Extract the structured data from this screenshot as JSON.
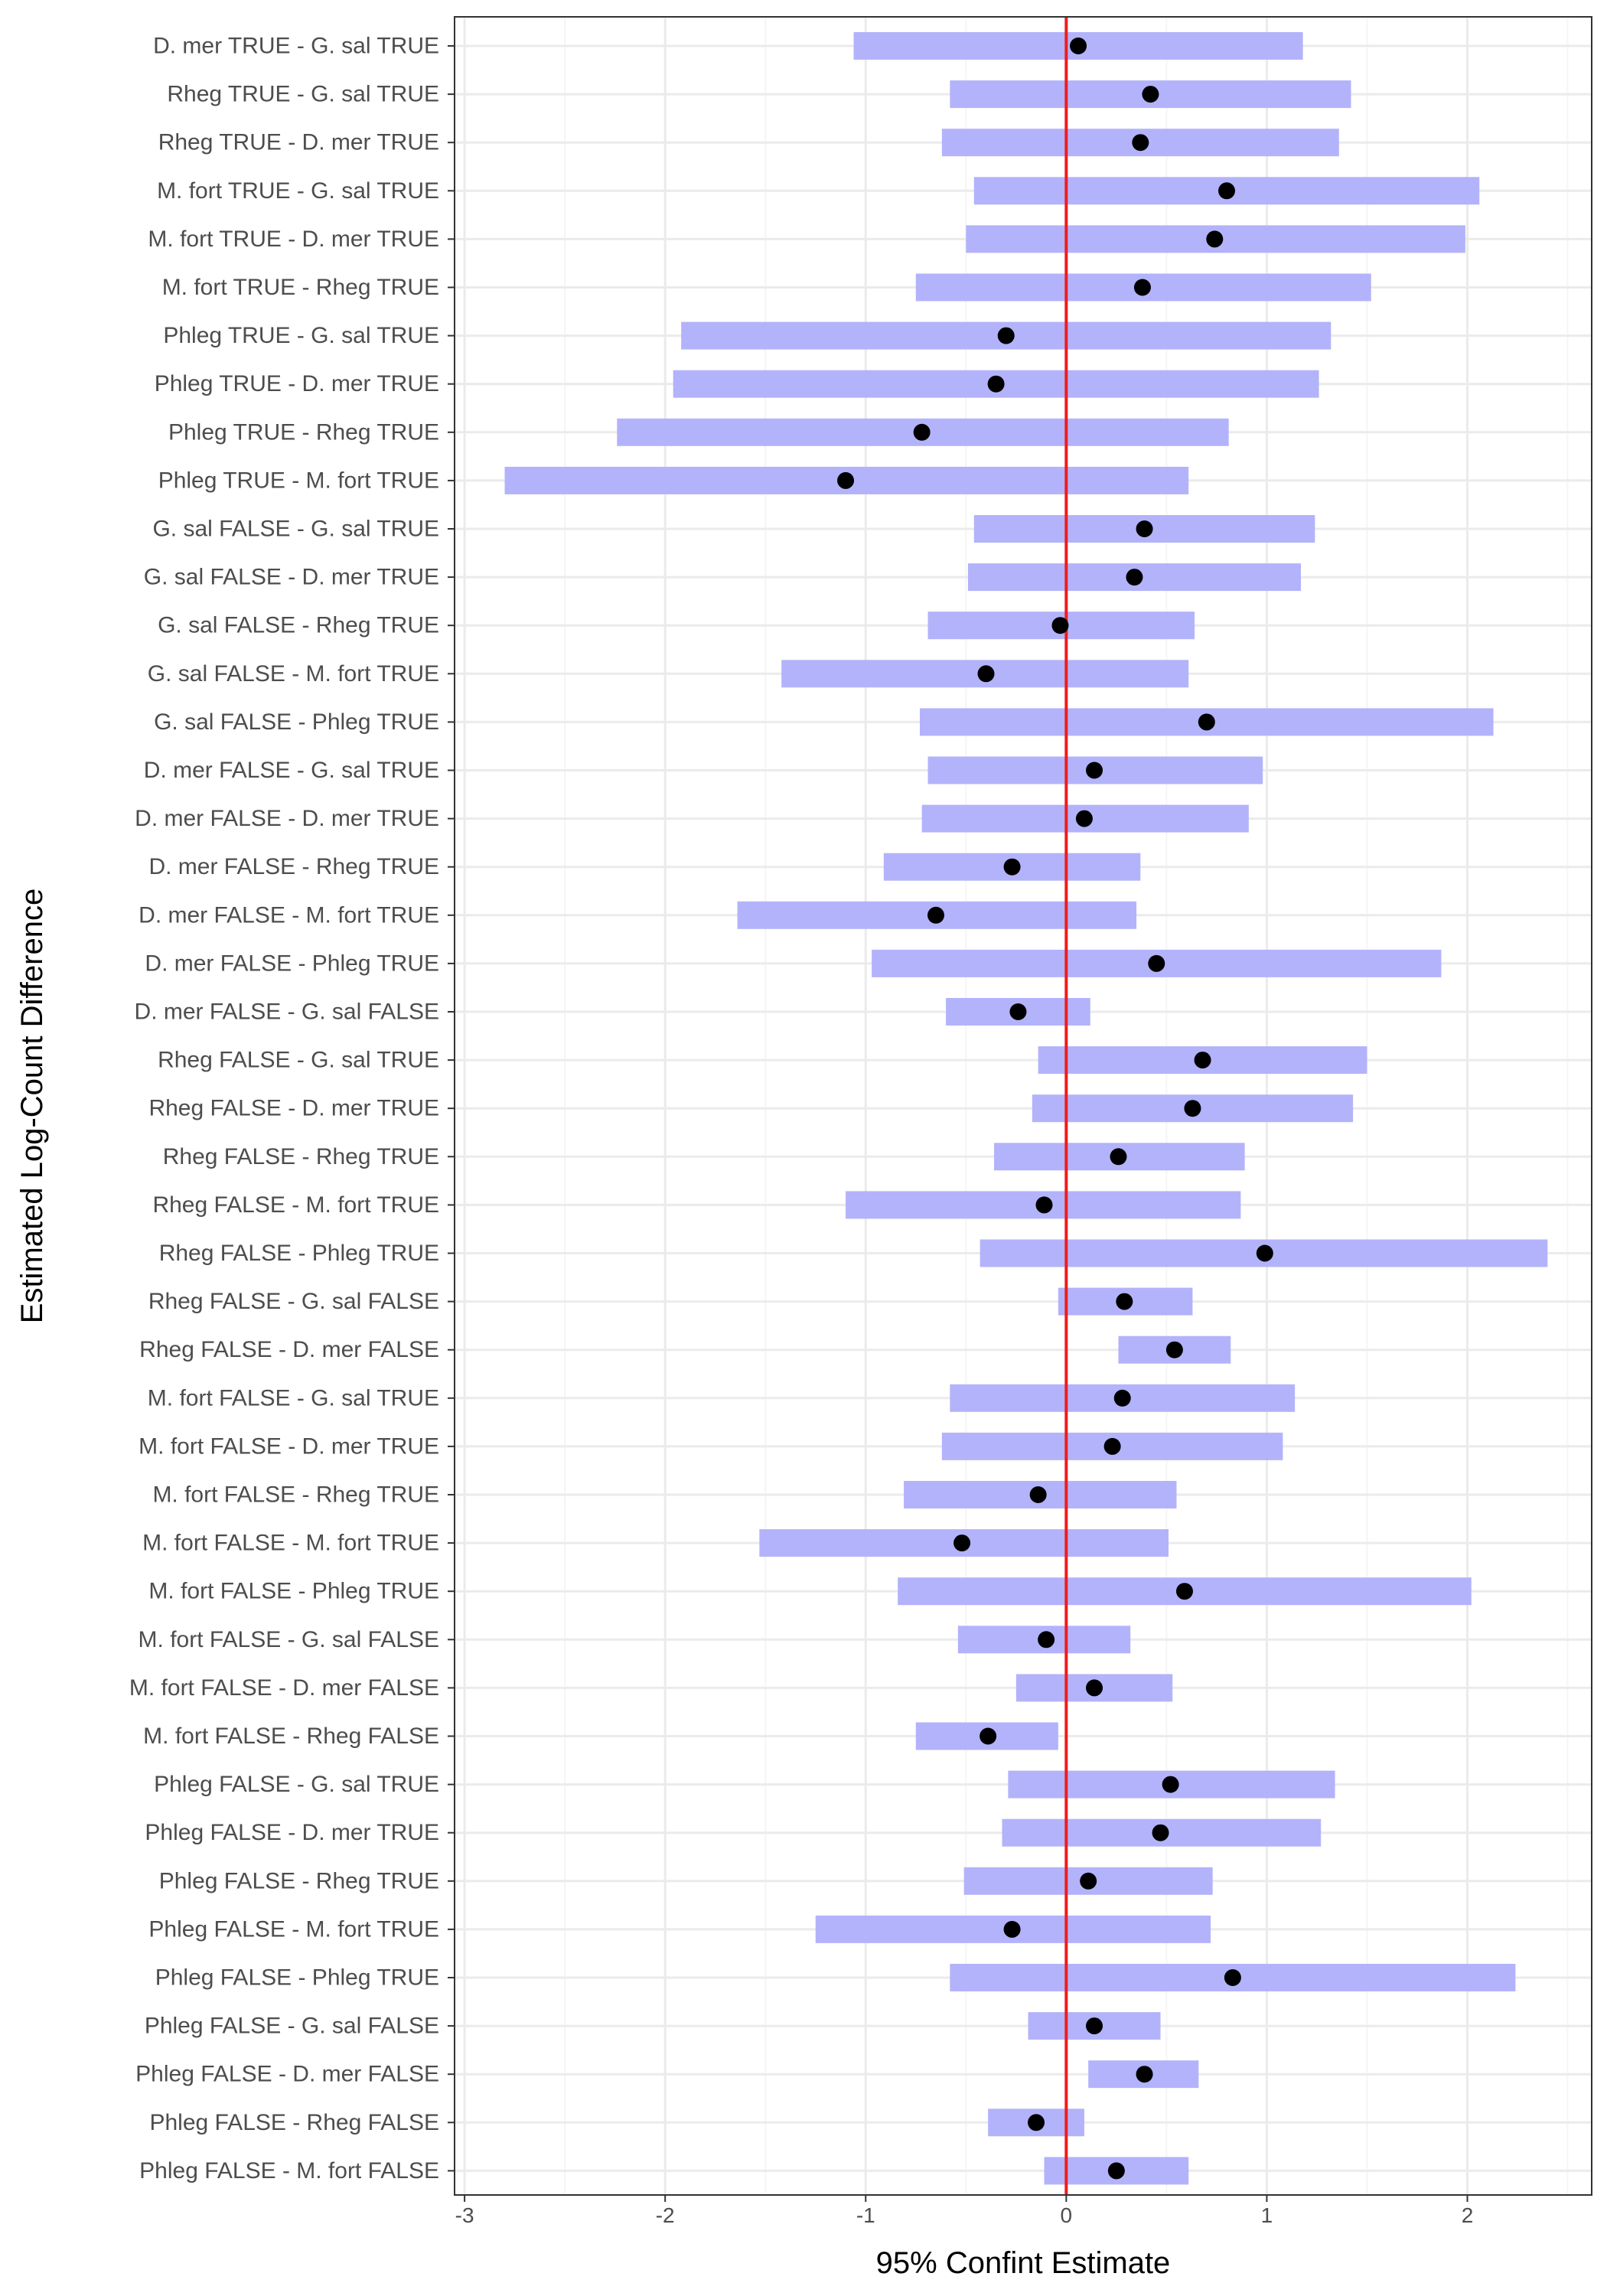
{
  "chart_data": {
    "type": "interval",
    "orientation": "horizontal",
    "xlabel": "95% Confint Estimate",
    "ylabel": "Estimated Log-Count Difference",
    "xlim": [
      -3.05,
      2.62
    ],
    "x_ticks": [
      -3,
      -2,
      -1,
      0,
      1,
      2
    ],
    "x_tick_labels": [
      "-3",
      "-2",
      "-1",
      "0",
      "1",
      "2"
    ],
    "reference_line": 0,
    "grid": true,
    "categories": [
      "D. mer TRUE - G. sal TRUE",
      "Rheg TRUE - G. sal TRUE",
      "Rheg TRUE - D. mer TRUE",
      "M. fort TRUE - G. sal TRUE",
      "M. fort TRUE - D. mer TRUE",
      "M. fort TRUE - Rheg TRUE",
      "Phleg TRUE - G. sal TRUE",
      "Phleg TRUE - D. mer TRUE",
      "Phleg TRUE - Rheg TRUE",
      "Phleg TRUE - M. fort TRUE",
      "G. sal FALSE - G. sal TRUE",
      "G. sal FALSE - D. mer TRUE",
      "G. sal FALSE - Rheg TRUE",
      "G. sal FALSE - M. fort TRUE",
      "G. sal FALSE - Phleg TRUE",
      "D. mer FALSE - G. sal TRUE",
      "D. mer FALSE - D. mer TRUE",
      "D. mer FALSE - Rheg TRUE",
      "D. mer FALSE - M. fort TRUE",
      "D. mer FALSE - Phleg TRUE",
      "D. mer FALSE - G. sal FALSE",
      "Rheg FALSE - G. sal TRUE",
      "Rheg FALSE - D. mer TRUE",
      "Rheg FALSE - Rheg TRUE",
      "Rheg FALSE - M. fort TRUE",
      "Rheg FALSE - Phleg TRUE",
      "Rheg FALSE - G. sal FALSE",
      "Rheg FALSE - D. mer FALSE",
      "M. fort FALSE - G. sal TRUE",
      "M. fort FALSE - D. mer TRUE",
      "M. fort FALSE - Rheg TRUE",
      "M. fort FALSE - M. fort TRUE",
      "M. fort FALSE - Phleg TRUE",
      "M. fort FALSE - G. sal FALSE",
      "M. fort FALSE - D. mer FALSE",
      "M. fort FALSE - Rheg FALSE",
      "Phleg FALSE - G. sal TRUE",
      "Phleg FALSE - D. mer TRUE",
      "Phleg FALSE - Rheg TRUE",
      "Phleg FALSE - M. fort TRUE",
      "Phleg FALSE - Phleg TRUE",
      "Phleg FALSE - G. sal FALSE",
      "Phleg FALSE - D. mer FALSE",
      "Phleg FALSE - Rheg FALSE",
      "Phleg FALSE - M. fort FALSE"
    ],
    "estimates": [
      0.06,
      0.42,
      0.37,
      0.8,
      0.74,
      0.38,
      -0.3,
      -0.35,
      -0.72,
      -1.1,
      0.39,
      0.34,
      -0.03,
      -0.4,
      0.7,
      0.14,
      0.09,
      -0.27,
      -0.65,
      0.45,
      -0.24,
      0.68,
      0.63,
      0.26,
      -0.11,
      0.99,
      0.29,
      0.54,
      0.28,
      0.23,
      -0.14,
      -0.52,
      0.59,
      -0.1,
      0.14,
      -0.39,
      0.52,
      0.47,
      0.11,
      -0.27,
      0.83,
      0.14,
      0.39,
      -0.15,
      0.25
    ],
    "lower": [
      -1.06,
      -0.58,
      -0.62,
      -0.46,
      -0.5,
      -0.75,
      -1.92,
      -1.96,
      -2.24,
      -2.8,
      -0.46,
      -0.49,
      -0.69,
      -1.42,
      -0.73,
      -0.69,
      -0.72,
      -0.91,
      -1.64,
      -0.97,
      -0.6,
      -0.14,
      -0.17,
      -0.36,
      -1.1,
      -0.43,
      -0.04,
      0.26,
      -0.58,
      -0.62,
      -0.81,
      -1.53,
      -0.84,
      -0.54,
      -0.25,
      -0.75,
      -0.29,
      -0.32,
      -0.51,
      -1.25,
      -0.58,
      -0.19,
      0.11,
      -0.39,
      -0.11
    ],
    "upper": [
      1.18,
      1.42,
      1.36,
      2.06,
      1.99,
      1.52,
      1.32,
      1.26,
      0.81,
      0.61,
      1.24,
      1.17,
      0.64,
      0.61,
      2.13,
      0.98,
      0.91,
      0.37,
      0.35,
      1.87,
      0.12,
      1.5,
      1.43,
      0.89,
      0.87,
      2.4,
      0.63,
      0.82,
      1.14,
      1.08,
      0.55,
      0.51,
      2.02,
      0.32,
      0.53,
      -0.04,
      1.34,
      1.27,
      0.73,
      0.72,
      2.24,
      0.47,
      0.66,
      0.09,
      0.61
    ]
  },
  "colors": {
    "interval": "#b3b3fb",
    "point": "#000000",
    "reference_line": "#ee1c1c",
    "grid_major": "#ebebeb",
    "grid_minor": "#f5f5f5",
    "panel_border": "#333333",
    "label": "#4d4d4d"
  }
}
